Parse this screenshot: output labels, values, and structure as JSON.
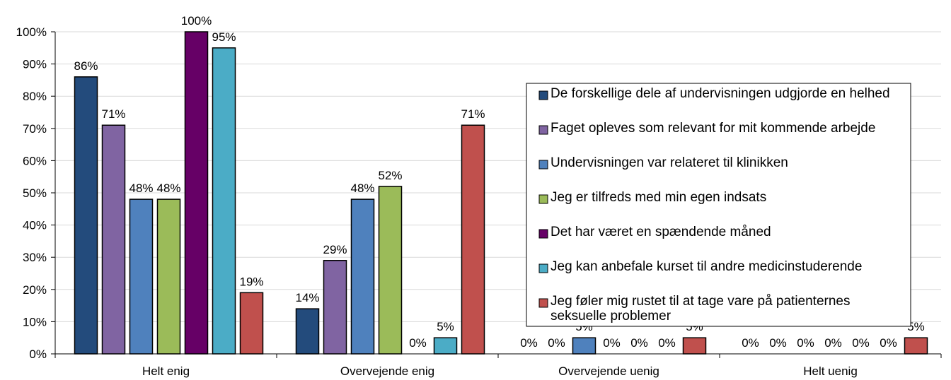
{
  "chart_data": {
    "type": "bar",
    "categories": [
      "Helt enig",
      "Overvejende enig",
      "Overvejende uenig",
      "Helt uenig"
    ],
    "series": [
      {
        "name": "De forskellige dele af undervisningen udgjorde en helhed",
        "color": "#234b7c",
        "values": [
          86,
          14,
          0,
          0
        ],
        "value_labels": [
          "86%",
          "14%",
          "0%",
          "0%"
        ]
      },
      {
        "name": "Faget opleves som relevant for mit kommende arbejde",
        "color": "#8064a2",
        "values": [
          71,
          29,
          0,
          0
        ],
        "value_labels": [
          "71%",
          "29%",
          "0%",
          "0%"
        ]
      },
      {
        "name": "Undervisningen var relateret til klinikken",
        "color": "#4f81bd",
        "values": [
          48,
          48,
          5,
          0
        ],
        "value_labels": [
          "48%",
          "48%",
          "5%",
          "0%"
        ]
      },
      {
        "name": "Jeg er tilfreds med min egen indsats",
        "color": "#9bbb59",
        "values": [
          48,
          52,
          0,
          0
        ],
        "value_labels": [
          "48%",
          "52%",
          "0%",
          "0%"
        ]
      },
      {
        "name": "Det har været en spændende måned",
        "color": "#660066",
        "values": [
          100,
          0,
          0,
          0
        ],
        "value_labels": [
          "100%",
          "0%",
          "0%",
          "0%"
        ]
      },
      {
        "name": "Jeg kan anbefale kurset til andre medicinstuderende",
        "color": "#4bacc6",
        "values": [
          95,
          5,
          0,
          0
        ],
        "value_labels": [
          "95%",
          "5%",
          "0%",
          "0%"
        ]
      },
      {
        "name": "Jeg føler mig rustet til at tage vare på patienternes seksuelle problemer",
        "color": "#c0504d",
        "values": [
          19,
          71,
          5,
          5
        ],
        "value_labels": [
          "19%",
          "71%",
          "5%",
          "5%"
        ]
      }
    ],
    "ylim": [
      0,
      100
    ],
    "yticks": [
      {
        "value": 0,
        "label": "0%"
      },
      {
        "value": 10,
        "label": "10%"
      },
      {
        "value": 20,
        "label": "20%"
      },
      {
        "value": 30,
        "label": "30%"
      },
      {
        "value": 40,
        "label": "40%"
      },
      {
        "value": 50,
        "label": "50%"
      },
      {
        "value": 60,
        "label": "60%"
      },
      {
        "value": 70,
        "label": "70%"
      },
      {
        "value": 80,
        "label": "80%"
      },
      {
        "value": 90,
        "label": "90%"
      },
      {
        "value": 100,
        "label": "100%"
      }
    ],
    "grid": true,
    "legend": "right"
  }
}
